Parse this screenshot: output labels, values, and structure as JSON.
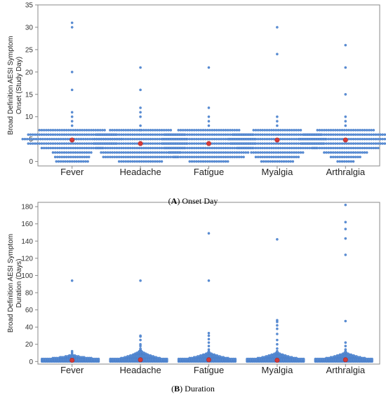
{
  "chart_data": [
    {
      "type": "scatter",
      "caption_letter": "A",
      "caption_text": "Onset Day",
      "title": "",
      "ylabel_line1": "Broad Definition AESI Symptom",
      "ylabel_line2": "Onset (Study Day)",
      "ylim": [
        -1,
        35
      ],
      "yticks": [
        0,
        5,
        10,
        15,
        20,
        25,
        30,
        35
      ],
      "categories": [
        "Fever",
        "Headache",
        "Fatigue",
        "Myalgia",
        "Arthralgia"
      ],
      "grid": false,
      "legend": "none",
      "series": [
        {
          "category": "Fever",
          "mean": 4.8,
          "outliers": [
            8,
            9,
            10,
            11,
            16,
            20,
            30,
            31
          ],
          "counts": {
            "0": 15,
            "1": 16,
            "2": 18,
            "3": 28,
            "4": 40,
            "5": 45,
            "6": 40,
            "7": 30
          }
        },
        {
          "category": "Headache",
          "mean": 4.0,
          "outliers": [
            7,
            8,
            10,
            11,
            12,
            16,
            21
          ],
          "counts": {
            "0": 20,
            "1": 34,
            "2": 36,
            "3": 40,
            "4": 42,
            "5": 42,
            "6": 40,
            "7": 28
          }
        },
        {
          "category": "Fatigue",
          "mean": 4.0,
          "outliers": [
            8,
            9,
            10,
            12,
            21
          ],
          "counts": {
            "0": 18,
            "1": 32,
            "2": 36,
            "3": 40,
            "4": 42,
            "5": 42,
            "6": 40,
            "7": 28
          }
        },
        {
          "category": "Myalgia",
          "mean": 4.8,
          "outliers": [
            8,
            9,
            10,
            24,
            30
          ],
          "counts": {
            "0": 15,
            "1": 20,
            "2": 24,
            "3": 36,
            "4": 42,
            "5": 44,
            "6": 40,
            "7": 22
          }
        },
        {
          "category": "Arthralgia",
          "mean": 4.8,
          "outliers": [
            8,
            9,
            10,
            15,
            21,
            26
          ],
          "counts": {
            "0": 8,
            "1": 14,
            "2": 20,
            "3": 30,
            "4": 40,
            "5": 42,
            "6": 38,
            "7": 26
          }
        }
      ]
    },
    {
      "type": "scatter",
      "caption_letter": "B",
      "caption_text": "Duration",
      "title": "",
      "ylabel_line1": "Broad Definition AESI Symptom",
      "ylabel_line2": "Duration (Days)",
      "ylim": [
        -3,
        185
      ],
      "yticks": [
        0,
        20,
        40,
        60,
        80,
        100,
        120,
        140,
        160,
        180
      ],
      "categories": [
        "Fever",
        "Headache",
        "Fatigue",
        "Myalgia",
        "Arthralgia"
      ],
      "grid": false,
      "legend": "none",
      "series": [
        {
          "category": "Fever",
          "mean": 1.5,
          "outliers": [
            5,
            8,
            10,
            12,
            94
          ],
          "spread": 8
        },
        {
          "category": "Headache",
          "mean": 2.0,
          "outliers": [
            15,
            18,
            20,
            25,
            29,
            30,
            94
          ],
          "spread": 14
        },
        {
          "category": "Fatigue",
          "mean": 2.0,
          "outliers": [
            14,
            18,
            22,
            26,
            30,
            33,
            94,
            149
          ],
          "spread": 12
        },
        {
          "category": "Myalgia",
          "mean": 1.5,
          "outliers": [
            15,
            20,
            25,
            32,
            38,
            42,
            46,
            48,
            142
          ],
          "spread": 12
        },
        {
          "category": "Arthralgia",
          "mean": 2.0,
          "outliers": [
            14,
            18,
            22,
            47,
            124,
            143,
            154,
            162,
            182
          ],
          "spread": 12
        }
      ]
    }
  ]
}
